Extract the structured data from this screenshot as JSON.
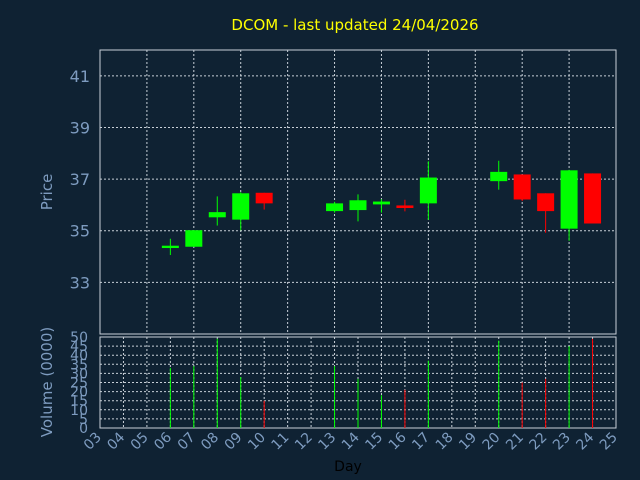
{
  "title": "DCOM - last updated 24/04/2026",
  "colors": {
    "background": "#0f2233",
    "title": "#ffff00",
    "axis_text": "#7e9cc0",
    "up": "#00ff00",
    "down": "#ff0000",
    "grid": "#c8d0d8"
  },
  "chart_data": [
    {
      "type": "candlestick",
      "ylabel": "Price",
      "ylim": [
        31.0,
        42.0
      ],
      "yticks": [
        33,
        35,
        37,
        39,
        41
      ],
      "grid": true,
      "x_days": [
        "03",
        "04",
        "05",
        "06",
        "07",
        "08",
        "09",
        "10",
        "11",
        "12",
        "13",
        "14",
        "15",
        "16",
        "17",
        "18",
        "19",
        "20",
        "21",
        "22",
        "23",
        "24",
        "25"
      ],
      "candles": [
        {
          "day": "06",
          "open": 34.33,
          "high": 34.69,
          "low": 34.06,
          "close": 34.42
        },
        {
          "day": "07",
          "open": 34.38,
          "high": 35.02,
          "low": 34.38,
          "close": 35.02
        },
        {
          "day": "08",
          "open": 35.52,
          "high": 36.33,
          "low": 35.2,
          "close": 35.72
        },
        {
          "day": "09",
          "open": 35.43,
          "high": 36.49,
          "low": 35.02,
          "close": 36.45
        },
        {
          "day": "10",
          "open": 36.47,
          "high": 36.47,
          "low": 35.82,
          "close": 36.06
        },
        {
          "day": "13",
          "open": 35.76,
          "high": 36.12,
          "low": 35.7,
          "close": 36.06
        },
        {
          "day": "14",
          "open": 35.8,
          "high": 36.41,
          "low": 35.36,
          "close": 36.18
        },
        {
          "day": "15",
          "open": 36.02,
          "high": 36.22,
          "low": 35.7,
          "close": 36.13
        },
        {
          "day": "16",
          "open": 35.98,
          "high": 36.2,
          "low": 35.75,
          "close": 35.88
        },
        {
          "day": "17",
          "open": 36.06,
          "high": 37.69,
          "low": 35.42,
          "close": 37.06
        },
        {
          "day": "20",
          "open": 36.92,
          "high": 37.71,
          "low": 36.59,
          "close": 37.28
        },
        {
          "day": "21",
          "open": 37.18,
          "high": 37.18,
          "low": 36.15,
          "close": 36.21
        },
        {
          "day": "22",
          "open": 36.45,
          "high": 36.45,
          "low": 34.92,
          "close": 35.76
        },
        {
          "day": "23",
          "open": 35.08,
          "high": 37.36,
          "low": 34.61,
          "close": 37.34
        },
        {
          "day": "24",
          "open": 37.22,
          "high": 37.22,
          "low": 35.28,
          "close": 35.28
        }
      ]
    },
    {
      "type": "bar",
      "ylabel": "Volume (0000)",
      "xlabel": "Day",
      "ylim": [
        0,
        50
      ],
      "yticks": [
        0,
        5,
        10,
        15,
        20,
        25,
        30,
        35,
        40,
        45,
        50
      ],
      "grid": true,
      "bars": [
        {
          "day": "06",
          "value": 33,
          "direction": "up"
        },
        {
          "day": "07",
          "value": 34,
          "direction": "up"
        },
        {
          "day": "08",
          "value": 49,
          "direction": "up"
        },
        {
          "day": "09",
          "value": 28,
          "direction": "up"
        },
        {
          "day": "10",
          "value": 15,
          "direction": "down"
        },
        {
          "day": "13",
          "value": 34,
          "direction": "up"
        },
        {
          "day": "14",
          "value": 27,
          "direction": "up"
        },
        {
          "day": "15",
          "value": 18,
          "direction": "up"
        },
        {
          "day": "16",
          "value": 21,
          "direction": "down"
        },
        {
          "day": "17",
          "value": 37,
          "direction": "up"
        },
        {
          "day": "20",
          "value": 48,
          "direction": "up"
        },
        {
          "day": "21",
          "value": 25,
          "direction": "down"
        },
        {
          "day": "22",
          "value": 27,
          "direction": "down"
        },
        {
          "day": "23",
          "value": 45,
          "direction": "up"
        },
        {
          "day": "24",
          "value": 49,
          "direction": "down"
        }
      ]
    }
  ]
}
